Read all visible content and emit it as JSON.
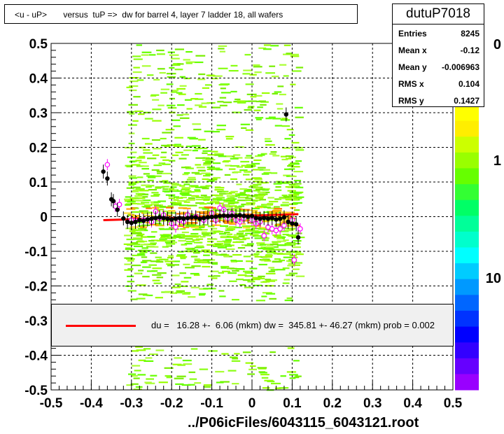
{
  "title": "<u - uP>       versus  tuP =>  dw for barrel 4, layer 7 ladder 18, all wafers",
  "stats": {
    "name": "dutuP7018",
    "rows": [
      {
        "label": "Entries",
        "value": "8245"
      },
      {
        "label": "Mean x",
        "value": "-0.12"
      },
      {
        "label": "Mean y",
        "value": "-0.006963"
      },
      {
        "label": "RMS x",
        "value": "0.104"
      },
      {
        "label": "RMS y",
        "value": "0.1427"
      }
    ]
  },
  "legend": {
    "text": "du =   16.28 +-  6.06 (mkm) dw =  345.81 +- 46.27 (mkm) prob = 0.002",
    "line_color": "#ff0000"
  },
  "x_axis_title": "../P06icFiles/6043115_6043121.root",
  "palette_labels": [
    "0",
    "1",
    "10"
  ],
  "colors": {
    "fit_line": "#ff0000",
    "profile_black": "#000000",
    "profile_magenta": "#ff00ff",
    "grid": "#000000"
  },
  "chart_data": {
    "type": "scatter",
    "xlim": [
      -0.5,
      0.5
    ],
    "ylim": [
      -0.5,
      0.5
    ],
    "xticks": [
      "-0.5",
      "-0.4",
      "-0.3",
      "-0.2",
      "-0.1",
      "0",
      "0.1",
      "0.2",
      "0.3",
      "0.4",
      "0.5"
    ],
    "yticks": [
      "-0.5",
      "-0.4",
      "-0.3",
      "-0.2",
      "-0.1",
      "0",
      "0.1",
      "0.2",
      "0.3",
      "0.4",
      "0.5"
    ],
    "grid": true,
    "fit_line": {
      "x": [
        -0.37,
        0.115
      ],
      "y": [
        -0.01,
        0.007
      ]
    },
    "series": [
      {
        "marker": "filled-circle",
        "points": [
          [
            -0.37,
            0.13
          ],
          [
            -0.36,
            0.11
          ],
          [
            -0.35,
            0.05
          ],
          [
            -0.345,
            0.045
          ],
          [
            -0.335,
            0.02
          ],
          [
            -0.32,
            -0.005
          ],
          [
            -0.31,
            -0.015
          ],
          [
            -0.3,
            -0.018
          ],
          [
            -0.29,
            -0.015
          ],
          [
            -0.28,
            -0.01
          ],
          [
            -0.27,
            -0.012
          ],
          [
            -0.26,
            -0.008
          ],
          [
            -0.25,
            -0.006
          ],
          [
            -0.24,
            -0.004
          ],
          [
            -0.23,
            -0.002
          ],
          [
            -0.22,
            -0.004
          ],
          [
            -0.21,
            -0.006
          ],
          [
            -0.2,
            -0.008
          ],
          [
            -0.19,
            -0.006
          ],
          [
            -0.18,
            -0.004
          ],
          [
            -0.17,
            -0.006
          ],
          [
            -0.16,
            -0.004
          ],
          [
            -0.15,
            -0.002
          ],
          [
            -0.14,
            -0.002
          ],
          [
            -0.13,
            -0.006
          ],
          [
            -0.12,
            -0.004
          ],
          [
            -0.11,
            -0.002
          ],
          [
            -0.1,
            -0.001
          ],
          [
            -0.09,
            0.0
          ],
          [
            -0.08,
            0.002
          ],
          [
            -0.07,
            0.003
          ],
          [
            -0.06,
            0.002
          ],
          [
            -0.05,
            0.003
          ],
          [
            -0.04,
            0.002
          ],
          [
            -0.03,
            0.004
          ],
          [
            -0.02,
            0.002
          ],
          [
            -0.01,
            0.0
          ],
          [
            0.0,
            0.002
          ],
          [
            0.01,
            -0.004
          ],
          [
            0.02,
            -0.006
          ],
          [
            0.03,
            -0.004
          ],
          [
            0.04,
            -0.006
          ],
          [
            0.05,
            -0.004
          ],
          [
            0.06,
            -0.008
          ],
          [
            0.07,
            -0.006
          ],
          [
            0.08,
            -0.002
          ],
          [
            0.085,
            0.295
          ],
          [
            0.09,
            -0.015
          ],
          [
            0.1,
            -0.02
          ],
          [
            0.11,
            -0.022
          ],
          [
            0.115,
            -0.06
          ]
        ]
      },
      {
        "marker": "open-circle",
        "points": [
          [
            -0.36,
            0.15
          ],
          [
            -0.34,
            0.03
          ],
          [
            -0.33,
            0.035
          ],
          [
            -0.3,
            -0.01
          ],
          [
            -0.29,
            -0.012
          ],
          [
            -0.27,
            -0.01
          ],
          [
            -0.25,
            -0.015
          ],
          [
            -0.24,
            0.015
          ],
          [
            -0.23,
            -0.005
          ],
          [
            -0.22,
            0.005
          ],
          [
            -0.2,
            -0.02
          ],
          [
            -0.19,
            -0.03
          ],
          [
            -0.18,
            -0.01
          ],
          [
            -0.17,
            -0.015
          ],
          [
            -0.16,
            0.005
          ],
          [
            -0.14,
            0.0
          ],
          [
            -0.12,
            -0.01
          ],
          [
            -0.1,
            0.01
          ],
          [
            -0.09,
            -0.01
          ],
          [
            -0.08,
            0.025
          ],
          [
            -0.07,
            0.02
          ],
          [
            -0.06,
            -0.005
          ],
          [
            -0.05,
            0.01
          ],
          [
            -0.04,
            -0.01
          ],
          [
            -0.03,
            -0.015
          ],
          [
            -0.02,
            -0.005
          ],
          [
            0.0,
            -0.01
          ],
          [
            0.01,
            -0.02
          ],
          [
            0.02,
            -0.015
          ],
          [
            0.03,
            -0.055
          ],
          [
            0.04,
            -0.03
          ],
          [
            0.05,
            -0.035
          ],
          [
            0.06,
            -0.04
          ],
          [
            0.07,
            -0.035
          ],
          [
            0.08,
            -0.025
          ],
          [
            0.1,
            -0.01
          ],
          [
            0.105,
            -0.125
          ],
          [
            0.12,
            -0.035
          ]
        ]
      }
    ]
  }
}
